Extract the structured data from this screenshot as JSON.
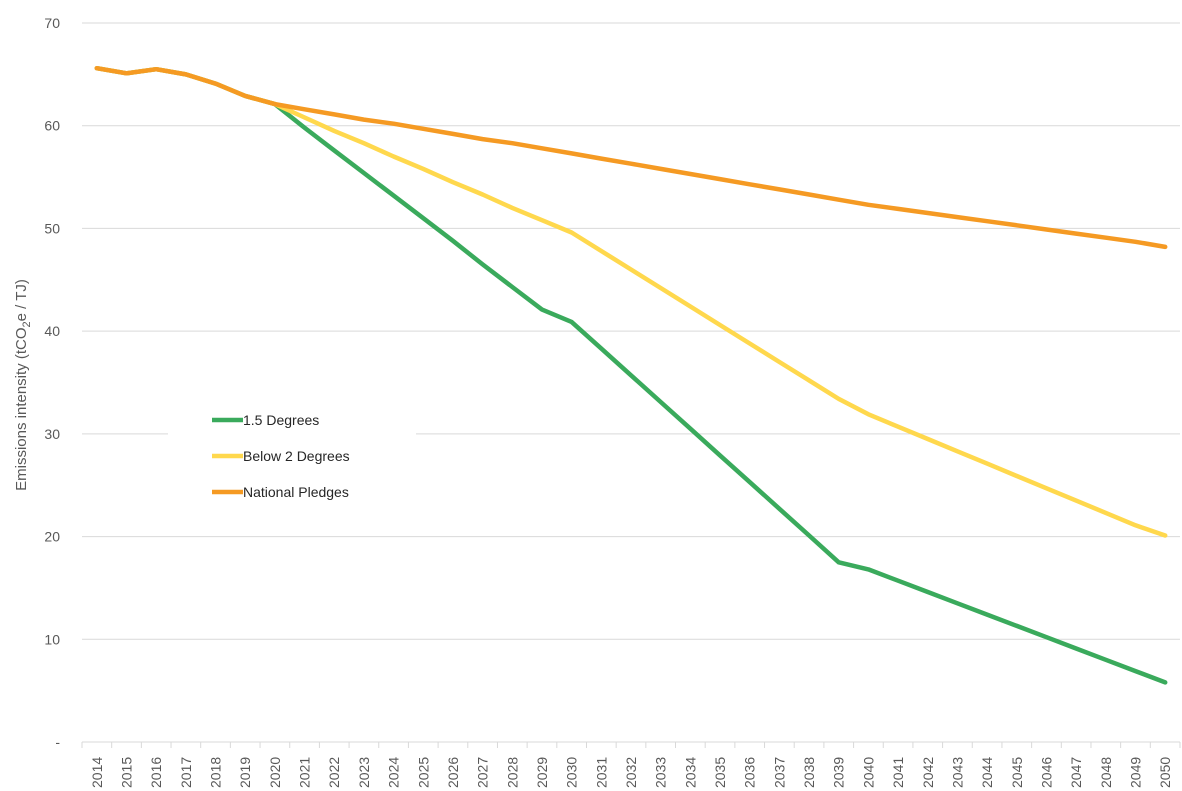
{
  "chart_data": {
    "type": "line",
    "title": "",
    "xlabel": "",
    "ylabel_main": "Emissions intensity (tCO",
    "ylabel_sub": "2",
    "ylabel_tail": "e / TJ)",
    "ylim": [
      0,
      70
    ],
    "yticks": [
      {
        "value": 0,
        "label": "-"
      },
      {
        "value": 10,
        "label": "10"
      },
      {
        "value": 20,
        "label": "20"
      },
      {
        "value": 30,
        "label": "30"
      },
      {
        "value": 40,
        "label": "40"
      },
      {
        "value": 50,
        "label": "50"
      },
      {
        "value": 60,
        "label": "60"
      },
      {
        "value": 70,
        "label": "70"
      }
    ],
    "grid": true,
    "legend_position": "left-center",
    "x": [
      "2014",
      "2015",
      "2016",
      "2017",
      "2018",
      "2019",
      "2020",
      "2021",
      "2022",
      "2023",
      "2024",
      "2025",
      "2026",
      "2027",
      "2028",
      "2029",
      "2030",
      "2031",
      "2032",
      "2033",
      "2034",
      "2035",
      "2036",
      "2037",
      "2038",
      "2039",
      "2040",
      "2041",
      "2042",
      "2043",
      "2044",
      "2045",
      "2046",
      "2047",
      "2048",
      "2049",
      "2050"
    ],
    "series": [
      {
        "name": "1.5 Degrees",
        "color": "#3aaa5c",
        "values": [
          65.6,
          65.1,
          65.5,
          65.0,
          64.1,
          62.9,
          62.1,
          59.8,
          57.6,
          55.4,
          53.2,
          51.0,
          48.8,
          46.5,
          44.3,
          42.1,
          40.9,
          38.3,
          35.7,
          33.1,
          30.5,
          27.9,
          25.3,
          22.7,
          20.1,
          17.5,
          16.8,
          15.7,
          14.6,
          13.5,
          12.4,
          11.3,
          10.2,
          9.1,
          8.0,
          6.9,
          5.8
        ]
      },
      {
        "name": "Below 2 Degrees",
        "color": "#ffd84d",
        "values": [
          65.6,
          65.1,
          65.5,
          65.0,
          64.1,
          62.9,
          62.1,
          60.8,
          59.5,
          58.3,
          57.0,
          55.8,
          54.5,
          53.3,
          52.0,
          50.8,
          49.6,
          47.8,
          46.0,
          44.2,
          42.4,
          40.6,
          38.8,
          37.0,
          35.2,
          33.4,
          31.9,
          30.7,
          29.5,
          28.3,
          27.1,
          25.9,
          24.7,
          23.5,
          22.3,
          21.1,
          20.1
        ]
      },
      {
        "name": "National Pledges",
        "color": "#f59a23",
        "values": [
          65.6,
          65.1,
          65.5,
          65.0,
          64.1,
          62.9,
          62.1,
          61.6,
          61.1,
          60.6,
          60.2,
          59.7,
          59.2,
          58.7,
          58.3,
          57.8,
          57.3,
          56.8,
          56.3,
          55.8,
          55.3,
          54.8,
          54.3,
          53.8,
          53.3,
          52.8,
          52.3,
          51.9,
          51.5,
          51.1,
          50.7,
          50.3,
          49.9,
          49.5,
          49.1,
          48.7,
          48.2
        ]
      }
    ]
  }
}
